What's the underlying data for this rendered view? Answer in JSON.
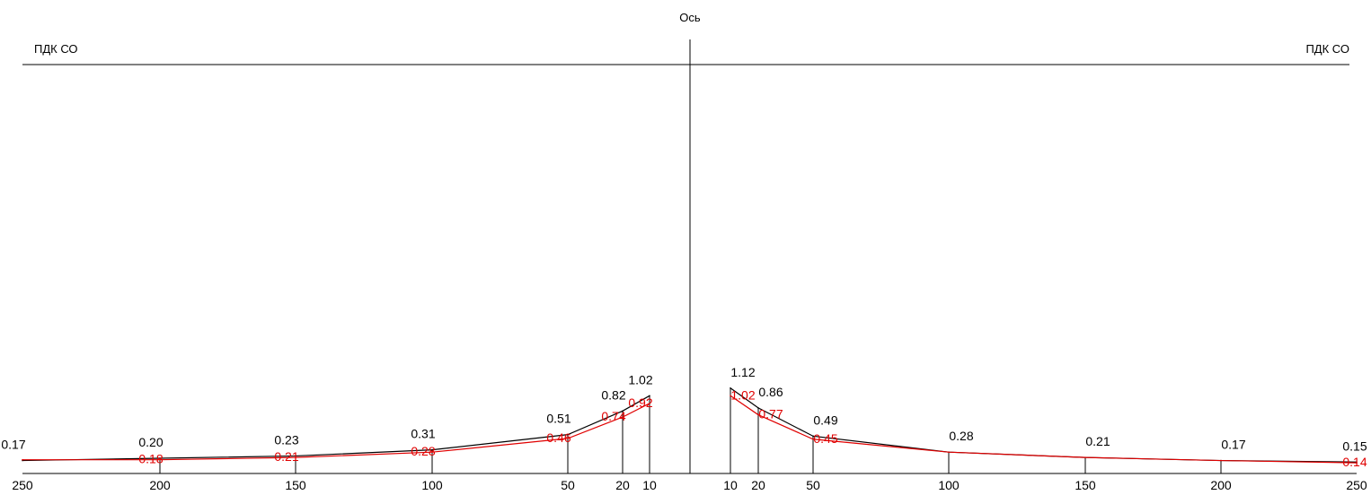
{
  "chart_data": {
    "type": "line",
    "title": "",
    "xlabel": "",
    "ylabel": "",
    "axis_label": "Ось",
    "limit_label_left": "ПДК СО",
    "limit_label_right": "ПДК СО",
    "limit_value": 1.0,
    "ylim": [
      0,
      1.0
    ],
    "x_tick_labels_left": [
      "250",
      "200",
      "150",
      "100",
      "50",
      "20",
      "10"
    ],
    "x_tick_labels_right": [
      "10",
      "20",
      "50",
      "100",
      "150",
      "200",
      "250"
    ],
    "x_left": [
      250,
      200,
      150,
      100,
      50,
      20,
      10
    ],
    "x_right": [
      10,
      20,
      50,
      100,
      150,
      200,
      250
    ],
    "series": [
      {
        "color": "#000000",
        "left_values": [
          0.17,
          0.2,
          0.23,
          0.31,
          0.51,
          0.82,
          1.02
        ],
        "left_labels": [
          "0.17",
          "0.20",
          "0.23",
          "0.31",
          "0.51",
          "0.82",
          "1.02"
        ],
        "right_values": [
          1.12,
          0.86,
          0.49,
          0.28,
          0.21,
          0.17,
          0.15
        ],
        "right_labels": [
          "1.12",
          "0.86",
          "0.49",
          "0.28",
          "0.21",
          "0.17",
          "0.15"
        ]
      },
      {
        "color": "#e00000",
        "left_values": [
          0.18,
          0.18,
          0.21,
          0.28,
          0.46,
          0.74,
          0.92
        ],
        "left_labels": [
          "",
          "0.18",
          "0.21",
          "0.28",
          "0.46",
          "0.74",
          "0.92"
        ],
        "right_values": [
          1.02,
          0.77,
          0.45,
          0.28,
          0.21,
          0.17,
          0.14
        ],
        "right_labels": [
          "1.02",
          "0.77",
          "0.45",
          "",
          "",
          "",
          "0.14"
        ]
      }
    ]
  }
}
